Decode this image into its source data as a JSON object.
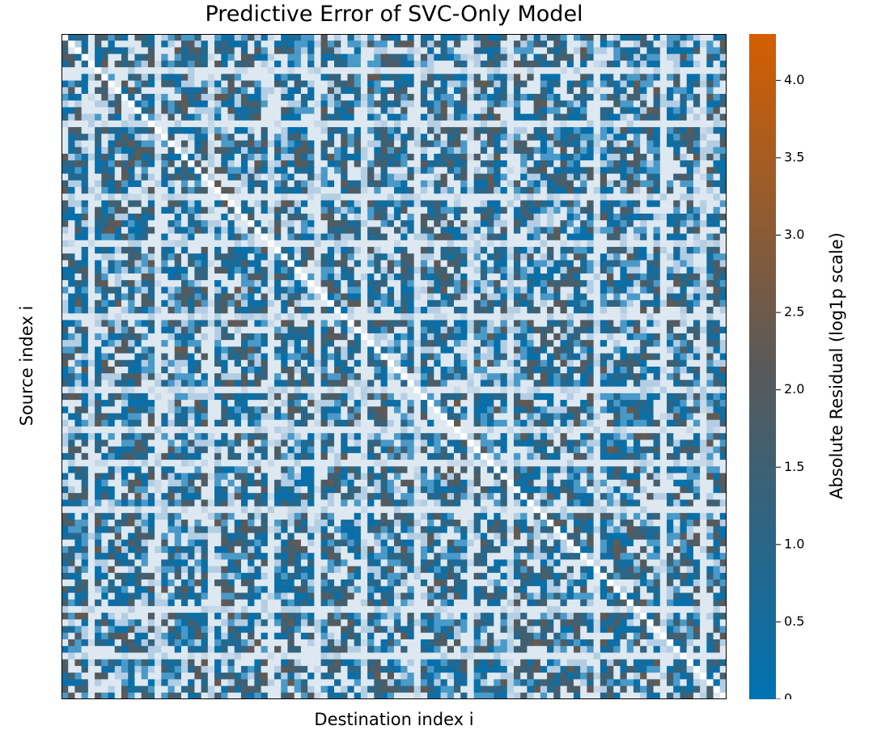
{
  "chart_data": {
    "type": "heatmap",
    "title": "Predictive Error of SVC-Only Model",
    "xlabel": "Destination index i",
    "ylabel": "Source index i",
    "colorbar": {
      "label": "Absolute Residual (log1p scale)",
      "range": [
        0,
        4.3
      ],
      "ticks": [
        "0",
        "0.5",
        "1.0",
        "1.5",
        "2.0",
        "2.5",
        "3.0",
        "3.5",
        "4.0"
      ],
      "colors": [
        "#0072b2",
        "#595959",
        "#d55e00"
      ]
    },
    "matrix_size": 100,
    "diagonal_value": 0,
    "light_rows": [
      5,
      13,
      24,
      31,
      42,
      53,
      59,
      64,
      71,
      86,
      93
    ],
    "light_cols": [
      4,
      14,
      22,
      31,
      38,
      45,
      53,
      61,
      67,
      80,
      90,
      96
    ],
    "x_tick_labels": [],
    "y_tick_labels": [],
    "grid": false
  }
}
